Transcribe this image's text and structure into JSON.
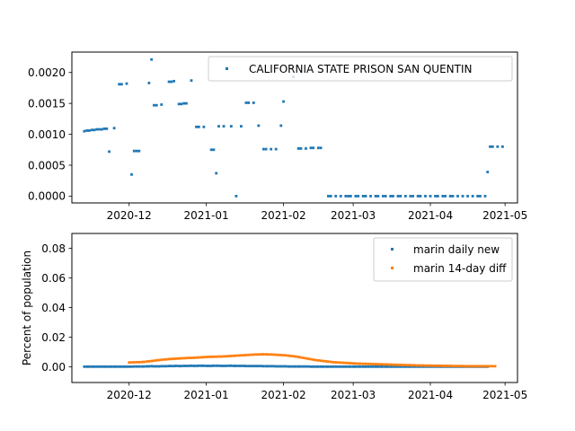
{
  "colors": {
    "blue": "#1f77b4",
    "orange": "#ff7f0e"
  },
  "chart_data": [
    {
      "type": "scatter",
      "x_axis": {
        "type": "date",
        "range": [
          "2020-11-08",
          "2021-05-06"
        ],
        "ticks": [
          "2020-12-01",
          "2021-01-01",
          "2021-02-01",
          "2021-03-01",
          "2021-04-01",
          "2021-05-01"
        ],
        "tick_labels": [
          "2020-12",
          "2021-01",
          "2021-02",
          "2021-03",
          "2021-04",
          "2021-05"
        ]
      },
      "y_axis": {
        "range": [
          -0.00011,
          0.00233
        ],
        "ticks": [
          0,
          0.0005,
          0.001,
          0.0015,
          0.002
        ],
        "tick_labels": [
          "0.0000",
          "0.0005",
          "0.0010",
          "0.0015",
          "0.0020"
        ]
      },
      "ylabel": "",
      "legend": {
        "position": "upper-right"
      },
      "series": [
        {
          "name": "CALIFORNIA STATE PRISON SAN QUENTIN",
          "color": "blue",
          "points": [
            [
              "2020-11-13",
              0.00105
            ],
            [
              "2020-11-14",
              0.00106
            ],
            [
              "2020-11-15",
              0.00106
            ],
            [
              "2020-11-16",
              0.00107
            ],
            [
              "2020-11-17",
              0.00107
            ],
            [
              "2020-11-18",
              0.00108
            ],
            [
              "2020-11-19",
              0.00108
            ],
            [
              "2020-11-20",
              0.00108
            ],
            [
              "2020-11-21",
              0.00109
            ],
            [
              "2020-11-22",
              0.00109
            ],
            [
              "2020-11-23",
              0.00072
            ],
            [
              "2020-11-25",
              0.0011
            ],
            [
              "2020-11-27",
              0.00181
            ],
            [
              "2020-11-28",
              0.00181
            ],
            [
              "2020-11-30",
              0.00182
            ],
            [
              "2020-12-02",
              0.00035
            ],
            [
              "2020-12-03",
              0.00073
            ],
            [
              "2020-12-04",
              0.00073
            ],
            [
              "2020-12-05",
              0.00073
            ],
            [
              "2020-12-09",
              0.00183
            ],
            [
              "2020-12-10",
              0.00221
            ],
            [
              "2020-12-11",
              0.00147
            ],
            [
              "2020-12-12",
              0.00147
            ],
            [
              "2020-12-14",
              0.00148
            ],
            [
              "2020-12-17",
              0.00185
            ],
            [
              "2020-12-18",
              0.00185
            ],
            [
              "2020-12-19",
              0.00186
            ],
            [
              "2020-12-21",
              0.00149
            ],
            [
              "2020-12-22",
              0.00149
            ],
            [
              "2020-12-23",
              0.0015
            ],
            [
              "2020-12-24",
              0.0015
            ],
            [
              "2020-12-26",
              0.00187
            ],
            [
              "2020-12-28",
              0.00112
            ],
            [
              "2020-12-29",
              0.00112
            ],
            [
              "2020-12-31",
              0.00112
            ],
            [
              "2021-01-03",
              0.00075
            ],
            [
              "2021-01-04",
              0.00075
            ],
            [
              "2021-01-05",
              0.00037
            ],
            [
              "2021-01-06",
              0.00113
            ],
            [
              "2021-01-08",
              0.00113
            ],
            [
              "2021-01-11",
              0.00113
            ],
            [
              "2021-01-13",
              0.0
            ],
            [
              "2021-01-15",
              0.00113
            ],
            [
              "2021-01-17",
              0.00151
            ],
            [
              "2021-01-18",
              0.00151
            ],
            [
              "2021-01-20",
              0.00151
            ],
            [
              "2021-01-22",
              0.00114
            ],
            [
              "2021-01-24",
              0.00076
            ],
            [
              "2021-01-25",
              0.00076
            ],
            [
              "2021-01-27",
              0.00076
            ],
            [
              "2021-01-29",
              0.00076
            ],
            [
              "2021-01-31",
              0.00114
            ],
            [
              "2021-02-01",
              0.00153
            ],
            [
              "2021-02-05",
              0.00193
            ],
            [
              "2021-02-07",
              0.00077
            ],
            [
              "2021-02-08",
              0.00077
            ],
            [
              "2021-02-10",
              0.00077
            ],
            [
              "2021-02-12",
              0.00078
            ],
            [
              "2021-02-13",
              0.00078
            ],
            [
              "2021-02-15",
              0.00078
            ],
            [
              "2021-02-16",
              0.00078
            ],
            [
              "2021-02-19",
              0.0
            ],
            [
              "2021-02-20",
              0.0
            ],
            [
              "2021-02-22",
              0.0
            ],
            [
              "2021-02-24",
              0.0
            ],
            [
              "2021-02-26",
              0.0
            ],
            [
              "2021-02-27",
              0.0
            ],
            [
              "2021-02-28",
              0.0
            ],
            [
              "2021-03-02",
              0.0
            ],
            [
              "2021-03-03",
              0.0
            ],
            [
              "2021-03-05",
              0.0
            ],
            [
              "2021-03-06",
              0.0
            ],
            [
              "2021-03-08",
              0.0
            ],
            [
              "2021-03-10",
              0.0
            ],
            [
              "2021-03-11",
              0.0
            ],
            [
              "2021-03-13",
              0.0
            ],
            [
              "2021-03-14",
              0.0
            ],
            [
              "2021-03-16",
              0.0
            ],
            [
              "2021-03-17",
              0.0
            ],
            [
              "2021-03-19",
              0.0
            ],
            [
              "2021-03-20",
              0.0
            ],
            [
              "2021-03-22",
              0.0
            ],
            [
              "2021-03-24",
              0.0
            ],
            [
              "2021-03-25",
              0.0
            ],
            [
              "2021-03-27",
              0.0
            ],
            [
              "2021-03-28",
              0.0
            ],
            [
              "2021-03-30",
              0.0
            ],
            [
              "2021-04-01",
              0.0
            ],
            [
              "2021-04-03",
              0.0
            ],
            [
              "2021-04-04",
              0.0
            ],
            [
              "2021-04-06",
              0.0
            ],
            [
              "2021-04-07",
              0.0
            ],
            [
              "2021-04-09",
              0.0
            ],
            [
              "2021-04-10",
              0.0
            ],
            [
              "2021-04-12",
              0.0
            ],
            [
              "2021-04-14",
              0.0
            ],
            [
              "2021-04-16",
              0.0
            ],
            [
              "2021-04-18",
              0.0
            ],
            [
              "2021-04-20",
              0.0
            ],
            [
              "2021-04-21",
              0.0
            ],
            [
              "2021-04-23",
              0.0
            ],
            [
              "2021-04-24",
              0.00039
            ],
            [
              "2021-04-25",
              0.0008
            ],
            [
              "2021-04-26",
              0.0008
            ],
            [
              "2021-04-28",
              0.0008
            ],
            [
              "2021-04-30",
              0.0008
            ]
          ]
        }
      ]
    },
    {
      "type": "scatter",
      "x_axis": {
        "type": "date",
        "range": [
          "2020-11-08",
          "2021-05-06"
        ],
        "ticks": [
          "2020-12-01",
          "2021-01-01",
          "2021-02-01",
          "2021-03-01",
          "2021-04-01",
          "2021-05-01"
        ],
        "tick_labels": [
          "2020-12",
          "2021-01",
          "2021-02",
          "2021-03",
          "2021-04",
          "2021-05"
        ]
      },
      "y_axis": {
        "range": [
          -0.0105,
          0.09
        ],
        "ticks": [
          0,
          0.02,
          0.04,
          0.06,
          0.08
        ],
        "tick_labels": [
          "0.00",
          "0.02",
          "0.04",
          "0.06",
          "0.08"
        ]
      },
      "ylabel": "Percent of population",
      "legend": {
        "position": "upper-right"
      },
      "series": [
        {
          "name": "marin daily new",
          "color": "blue",
          "start": "2020-11-13",
          "step_days": 1,
          "values": [
            0.0002,
            0.0002,
            0.0002,
            0.0002,
            0.0002,
            0.0002,
            0.0002,
            0.0002,
            0.0002,
            0.0002,
            0.0002,
            0.0002,
            0.0002,
            0.0002,
            0.0002,
            0.0002,
            0.0002,
            0.0002,
            0.0002,
            0.0002,
            0.0003,
            0.0003,
            0.0003,
            0.0003,
            0.0003,
            0.0004,
            0.0004,
            0.0005,
            0.0004,
            0.0004,
            0.0004,
            0.0005,
            0.0005,
            0.0005,
            0.0006,
            0.0006,
            0.0006,
            0.0007,
            0.0006,
            0.0006,
            0.0007,
            0.0007,
            0.0007,
            0.0008,
            0.0007,
            0.0007,
            0.0008,
            0.0008,
            0.0008,
            0.0007,
            0.0007,
            0.0007,
            0.0008,
            0.0008,
            0.0008,
            0.0007,
            0.0007,
            0.0007,
            0.0008,
            0.0008,
            0.0007,
            0.0007,
            0.0007,
            0.0007,
            0.0007,
            0.0006,
            0.0006,
            0.0006,
            0.0006,
            0.0006,
            0.0006,
            0.0006,
            0.0005,
            0.0005,
            0.0005,
            0.0005,
            0.0005,
            0.0004,
            0.0004,
            0.0004,
            0.0004,
            0.0004,
            0.0003,
            0.0003,
            0.0003,
            0.0003,
            0.0003,
            0.0003,
            0.0003,
            0.0003,
            0.0003,
            0.0002,
            0.0002,
            0.0002,
            0.0002,
            0.0002,
            0.0002,
            0.0002,
            0.0002,
            0.0002,
            0.0002,
            0.0002,
            0.0002,
            0.0002,
            0.0002,
            0.0002,
            0.0002,
            0.0002,
            0.0002,
            0.0002,
            0.0002,
            0.0002,
            0.0002,
            0.0002,
            0.0002,
            0.0002,
            0.0002,
            0.0002,
            0.0002,
            0.0002,
            0.0002,
            0.0002,
            0.0002,
            0.0002,
            0.0002,
            0.0002,
            0.0002,
            0.0002,
            0.0002,
            0.0002,
            0.0002,
            0.0002,
            0.0002,
            0.0002,
            0.0002,
            0.0002,
            0.0002,
            0.0002,
            0.0002,
            0.0002,
            0.0002,
            0.0002,
            0.0002,
            0.0002,
            0.0002,
            0.0002,
            0.0002,
            0.0002,
            0.0002,
            0.0002,
            0.0002,
            0.0002,
            0.0002,
            0.0002,
            0.0002,
            0.0002,
            0.0002,
            0.0002,
            0.0002,
            0.0002,
            0.0002,
            0.0002,
            0.0002
          ]
        },
        {
          "name": "marin 14-day diff",
          "color": "orange",
          "start": "2020-12-01",
          "step_days": 1,
          "values": [
            0.003,
            0.0031,
            0.0031,
            0.0032,
            0.0032,
            0.0033,
            0.0034,
            0.0036,
            0.0038,
            0.004,
            0.0042,
            0.0044,
            0.0046,
            0.0048,
            0.005,
            0.0051,
            0.0053,
            0.0054,
            0.0055,
            0.0056,
            0.0057,
            0.0058,
            0.0059,
            0.006,
            0.0061,
            0.0061,
            0.0062,
            0.0063,
            0.0064,
            0.0065,
            0.0066,
            0.0067,
            0.0068,
            0.0068,
            0.0069,
            0.0069,
            0.007,
            0.007,
            0.0071,
            0.0072,
            0.0073,
            0.0074,
            0.0075,
            0.0076,
            0.0077,
            0.0078,
            0.0079,
            0.008,
            0.0081,
            0.0082,
            0.0083,
            0.0084,
            0.0084,
            0.0085,
            0.0085,
            0.0085,
            0.0084,
            0.0084,
            0.0083,
            0.0082,
            0.0081,
            0.008,
            0.0079,
            0.0078,
            0.0076,
            0.0074,
            0.0072,
            0.007,
            0.0067,
            0.0064,
            0.0061,
            0.0058,
            0.0055,
            0.0052,
            0.0049,
            0.0046,
            0.0044,
            0.0042,
            0.004,
            0.0038,
            0.0036,
            0.0034,
            0.0032,
            0.0031,
            0.003,
            0.0029,
            0.0028,
            0.0027,
            0.0026,
            0.0025,
            0.0024,
            0.0023,
            0.0022,
            0.0022,
            0.0021,
            0.0021,
            0.002,
            0.002,
            0.0019,
            0.0019,
            0.0018,
            0.0018,
            0.0017,
            0.0017,
            0.0016,
            0.0016,
            0.0015,
            0.0015,
            0.0014,
            0.0014,
            0.0013,
            0.0013,
            0.0012,
            0.0012,
            0.0011,
            0.0011,
            0.001,
            0.001,
            0.001,
            0.0009,
            0.0009,
            0.0009,
            0.0008,
            0.0008,
            0.0008,
            0.0008,
            0.0007,
            0.0007,
            0.0007,
            0.0007,
            0.0006,
            0.0006,
            0.0006,
            0.0006,
            0.0006,
            0.0005,
            0.0005,
            0.0005,
            0.0005,
            0.0005,
            0.0005,
            0.0005,
            0.0005,
            0.0005,
            0.0005,
            0.0005,
            0.0005,
            0.0005
          ]
        }
      ]
    }
  ]
}
